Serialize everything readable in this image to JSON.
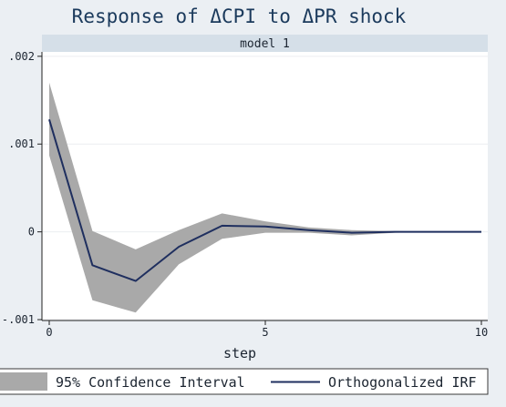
{
  "chart_data": {
    "type": "line",
    "title": "Response of ΔCPI to ΔPR shock",
    "panel_label": "model 1",
    "xlabel": "step",
    "ylabel": "",
    "xlim": [
      0,
      10
    ],
    "ylim": [
      -0.00101,
      0.00205
    ],
    "x_ticks": [
      0,
      5,
      10
    ],
    "x_tick_labels": [
      "0",
      "5",
      "10"
    ],
    "y_ticks": [
      0.002,
      0.001,
      0,
      -0.001
    ],
    "y_tick_labels": [
      ".002",
      ".001",
      "0",
      "-.001"
    ],
    "grid": true,
    "legend_position": "bottom",
    "x": [
      0,
      1,
      2,
      3,
      4,
      5,
      6,
      7,
      8,
      9,
      10
    ],
    "series": [
      {
        "name": "Orthogonalized IRF",
        "kind": "line",
        "color": "#1f2f5f",
        "values": [
          0.00128,
          -0.00038,
          -0.00056,
          -0.00017,
          7e-05,
          6e-05,
          2e-05,
          -1e-05,
          0.0,
          0.0,
          0.0
        ]
      },
      {
        "name": "95% Confidence Interval",
        "kind": "band",
        "color": "#a9a9a9",
        "upper": [
          0.0017,
          1e-05,
          -0.0002,
          2e-05,
          0.00021,
          0.00012,
          5e-05,
          2e-05,
          1e-05,
          0.0,
          0.0
        ],
        "lower": [
          0.00087,
          -0.00078,
          -0.00092,
          -0.00037,
          -8e-05,
          -1e-05,
          -1e-05,
          -4e-05,
          -1e-05,
          0.0,
          0.0
        ]
      }
    ],
    "colors": {
      "background": "#ebeff3",
      "plot_area": "#ffffff",
      "panel_header": "#d5dfe8",
      "title": "#1b3a5c"
    }
  }
}
